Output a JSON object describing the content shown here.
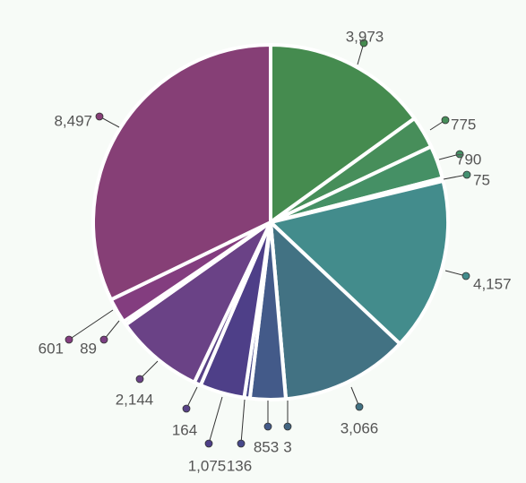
{
  "chart_data": {
    "type": "pie",
    "title": "",
    "legend": "none",
    "slices": [
      {
        "label": "3,973",
        "value": 3973,
        "color": "#458b4f"
      },
      {
        "label": "775",
        "value": 775,
        "color": "#478e5a"
      },
      {
        "label": "790",
        "value": 790,
        "color": "#459065"
      },
      {
        "label": "75",
        "value": 75,
        "color": "#449070"
      },
      {
        "label": "4,157",
        "value": 4157,
        "color": "#438c8c"
      },
      {
        "label": "3,066",
        "value": 3066,
        "color": "#427283"
      },
      {
        "label": "3",
        "value": 3,
        "color": "#426480"
      },
      {
        "label": "853",
        "value": 853,
        "color": "#435a89"
      },
      {
        "label": "136",
        "value": 136,
        "color": "#47488a"
      },
      {
        "label": "1,075",
        "value": 1075,
        "color": "#4e3f88"
      },
      {
        "label": "164",
        "value": 164,
        "color": "#584287"
      },
      {
        "label": "2,144",
        "value": 2144,
        "color": "#6a4286"
      },
      {
        "label": "89",
        "value": 89,
        "color": "#7b3f82"
      },
      {
        "label": "601",
        "value": 601,
        "color": "#833d7f"
      },
      {
        "label": "8,497",
        "value": 8497,
        "color": "#863f76"
      }
    ]
  }
}
